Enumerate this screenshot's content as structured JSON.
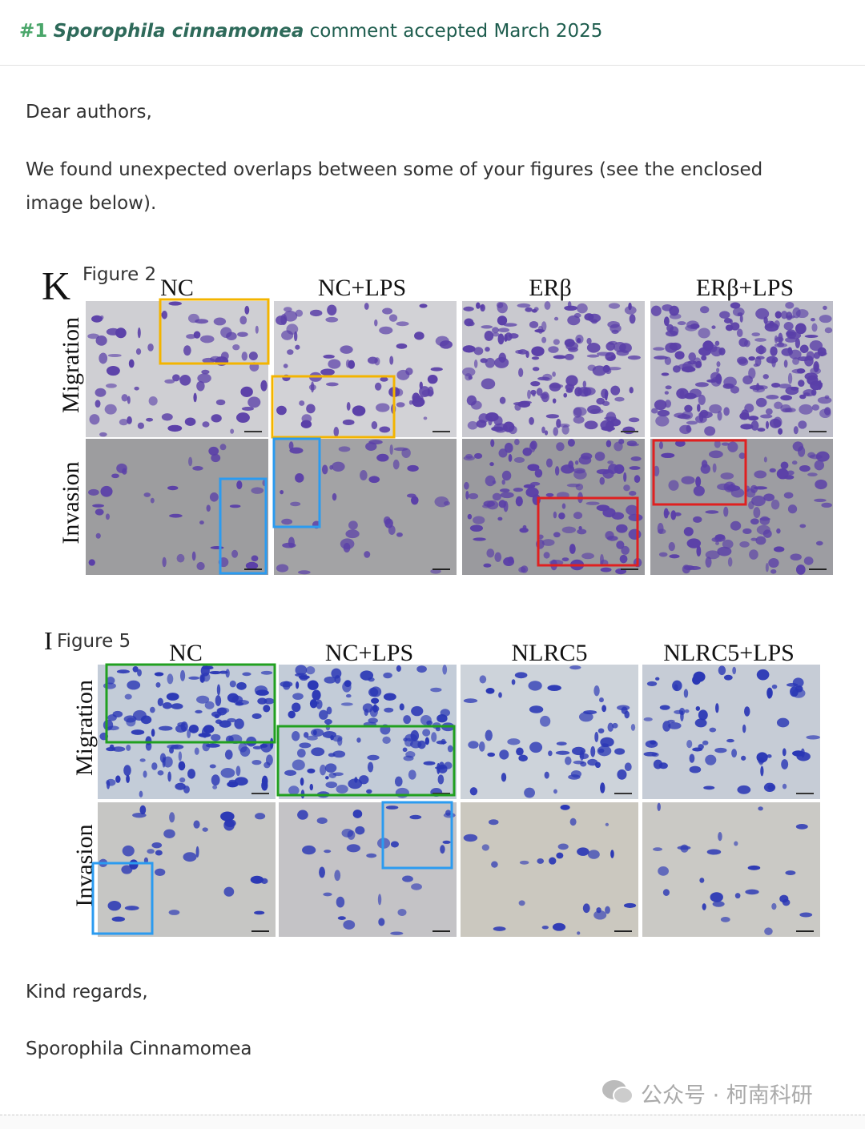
{
  "header": {
    "number": "#1",
    "author": "Sporophila cinnamomea",
    "status": "comment accepted March 2025"
  },
  "comment": {
    "greeting": "Dear authors,",
    "body": "We found unexpected overlaps between some of your figures (see the enclosed image below).",
    "figures": [
      {
        "panel_letter": "K",
        "caption": "Figure 2",
        "columns": [
          "NC",
          "NC+LPS",
          "ERβ",
          "ERβ+LPS"
        ],
        "rows": [
          "Migration",
          "Invasion"
        ]
      },
      {
        "panel_letter": "I",
        "caption": "Figure 5",
        "columns": [
          "NC",
          "NC+LPS",
          "NLRC5",
          "NLRC5+LPS"
        ],
        "rows": [
          "Migration",
          "Invasion"
        ]
      }
    ],
    "closing": "Kind regards,",
    "signature": "Sporophila Cinnamomea"
  },
  "watermark": "公众号 · 柯南科研"
}
